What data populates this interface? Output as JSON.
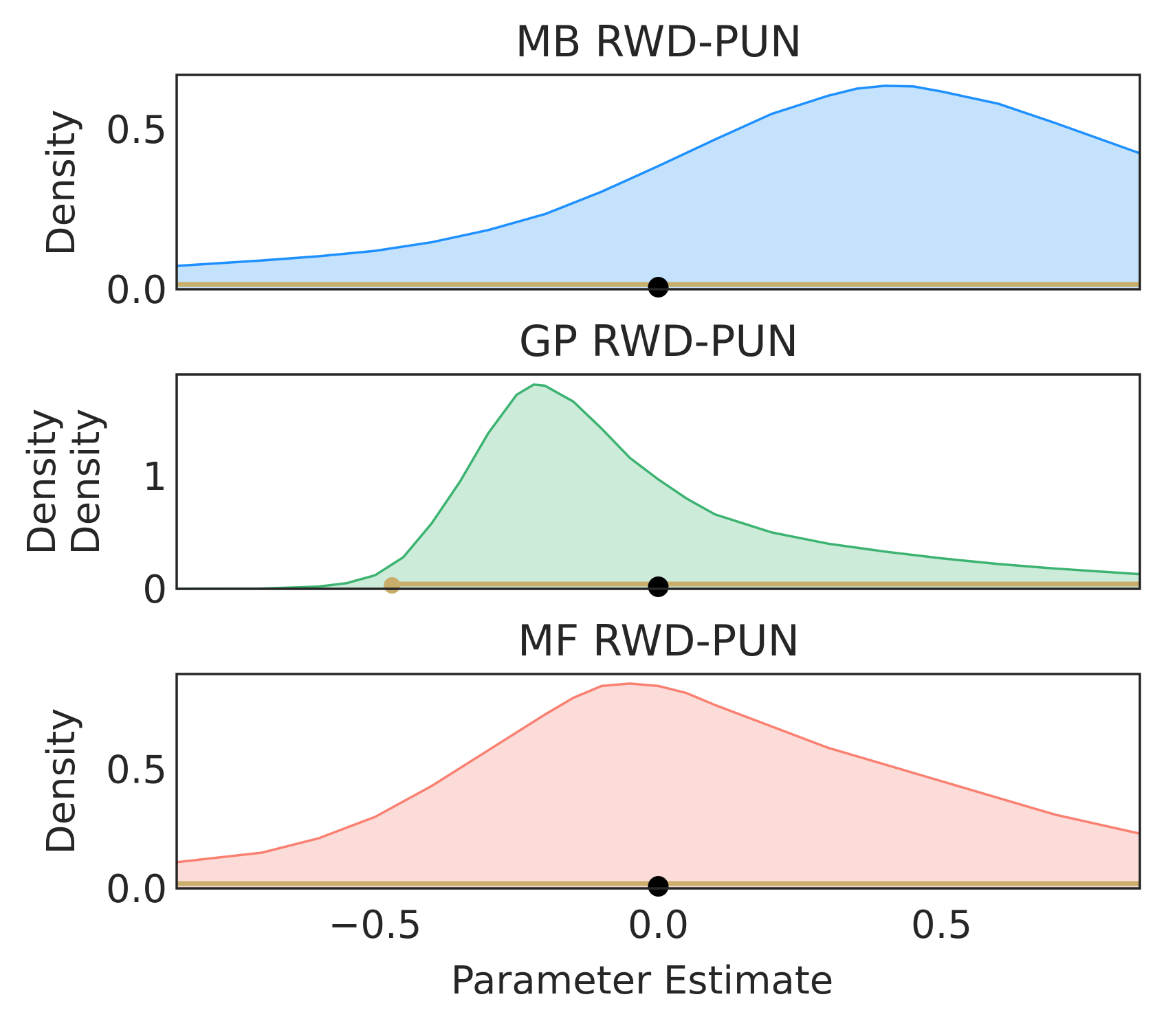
{
  "chart_data": [
    {
      "type": "area",
      "title": "MB RWD-PUN",
      "ylabel": "Density",
      "xlim": [
        -0.85,
        0.85
      ],
      "ylim": [
        0,
        0.67
      ],
      "yticks": [
        0.0,
        0.5
      ],
      "ytick_labels": [
        "0.0",
        "0.5"
      ],
      "show_xticks": false,
      "color": "#1E90FF",
      "fill": "#C4E2FC",
      "x": [
        -0.85,
        -0.7,
        -0.6,
        -0.5,
        -0.4,
        -0.3,
        -0.2,
        -0.1,
        0.0,
        0.1,
        0.2,
        0.3,
        0.35,
        0.4,
        0.45,
        0.5,
        0.6,
        0.7,
        0.85
      ],
      "y": [
        0.073,
        0.09,
        0.103,
        0.12,
        0.147,
        0.185,
        0.235,
        0.305,
        0.385,
        0.468,
        0.548,
        0.605,
        0.627,
        0.636,
        0.634,
        0.618,
        0.58,
        0.52,
        0.425
      ],
      "interval": [
        -0.85,
        0.85
      ],
      "point": 0.0
    },
    {
      "type": "area",
      "title": "GP RWD-PUN",
      "ylabel": "Density\nDensity",
      "xlim": [
        -0.85,
        0.85
      ],
      "ylim": [
        0,
        1.9
      ],
      "yticks": [
        0,
        1
      ],
      "ytick_labels": [
        "0",
        "1"
      ],
      "show_xticks": false,
      "color": "#3CB371",
      "fill": "#CDEBD9",
      "x": [
        -0.85,
        -0.7,
        -0.6,
        -0.55,
        -0.5,
        -0.45,
        -0.4,
        -0.35,
        -0.3,
        -0.25,
        -0.22,
        -0.2,
        -0.15,
        -0.1,
        -0.05,
        0.0,
        0.05,
        0.1,
        0.2,
        0.3,
        0.4,
        0.5,
        0.6,
        0.7,
        0.85
      ],
      "y": [
        0.0,
        0.002,
        0.02,
        0.05,
        0.12,
        0.28,
        0.58,
        0.95,
        1.38,
        1.72,
        1.81,
        1.8,
        1.66,
        1.42,
        1.16,
        0.97,
        0.8,
        0.66,
        0.5,
        0.4,
        0.33,
        0.27,
        0.22,
        0.18,
        0.13
      ],
      "interval": [
        -0.47,
        0.85
      ],
      "interval_dot": -0.47,
      "point": 0.0
    },
    {
      "type": "area",
      "title": "MF RWD-PUN",
      "ylabel": "Density",
      "xlim": [
        -0.85,
        0.85
      ],
      "ylim": [
        0,
        0.9
      ],
      "yticks": [
        0.0,
        0.5
      ],
      "ytick_labels": [
        "0.0",
        "0.5"
      ],
      "xticks": [
        -0.5,
        0.0,
        0.5
      ],
      "xtick_labels": [
        "−0.5",
        "0.0",
        "0.5"
      ],
      "xlabel": "Parameter Estimate",
      "show_xticks": true,
      "color": "#FA8072",
      "fill": "#FCDCD8",
      "x": [
        -0.85,
        -0.7,
        -0.6,
        -0.5,
        -0.4,
        -0.3,
        -0.2,
        -0.15,
        -0.1,
        -0.05,
        0.0,
        0.05,
        0.1,
        0.2,
        0.3,
        0.4,
        0.5,
        0.6,
        0.7,
        0.85
      ],
      "y": [
        0.11,
        0.15,
        0.21,
        0.3,
        0.43,
        0.58,
        0.73,
        0.8,
        0.85,
        0.86,
        0.85,
        0.82,
        0.77,
        0.68,
        0.59,
        0.52,
        0.45,
        0.38,
        0.31,
        0.23
      ],
      "interval": [
        -0.85,
        0.85
      ],
      "point": 0.0
    }
  ]
}
